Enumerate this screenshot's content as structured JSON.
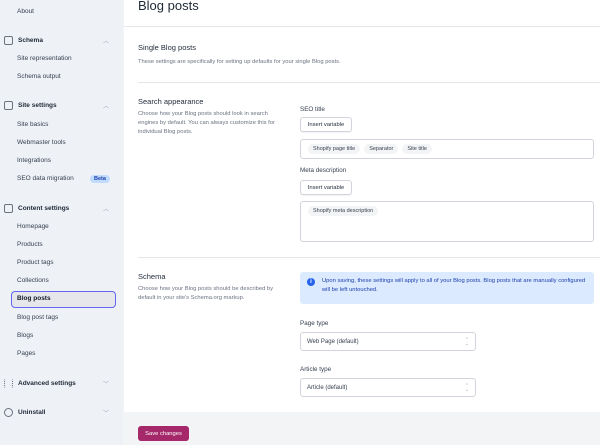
{
  "sidebar": {
    "about": "About",
    "schema": {
      "label": "Schema",
      "items": [
        "Site representation",
        "Schema output"
      ]
    },
    "site_settings": {
      "label": "Site settings",
      "items": [
        "Site basics",
        "Webmaster tools",
        "Integrations",
        "SEO data migration"
      ],
      "badge": "Beta"
    },
    "content_settings": {
      "label": "Content settings",
      "items": [
        "Homepage",
        "Products",
        "Product tags",
        "Collections",
        "Blog posts",
        "Blog post tags",
        "Blogs",
        "Pages"
      ]
    },
    "advanced": "Advanced settings",
    "uninstall": "Uninstall",
    "active_item": "Blog posts"
  },
  "page": {
    "title": "Blog posts",
    "single": {
      "heading": "Single Blog posts",
      "description": "These settings are specifically for setting up defaults for your single Blog posts."
    },
    "search": {
      "heading": "Search appearance",
      "description": "Choose how your Blog posts should look in search engines by default. You can always customize this for individual Blog posts.",
      "seo_title_label": "SEO title",
      "insert_variable": "Insert variable",
      "seo_title_chips": [
        "Shopify page title",
        "Separator",
        "Site title"
      ],
      "meta_label": "Meta description",
      "meta_chips": [
        "Shopify meta description"
      ]
    },
    "schema": {
      "heading": "Schema",
      "description": "Choose how your Blog posts should be described by default in your site's Schema.org markup.",
      "info": "Upon saving, these settings will apply to all of your Blog posts. Blog posts that are manually configured will be left untouched.",
      "page_type_label": "Page type",
      "page_type_value": "Web Page (default)",
      "article_type_label": "Article type",
      "article_type_value": "Article (default)"
    }
  },
  "footer": {
    "save": "Save changes"
  },
  "colors": {
    "accent": "#a4286a",
    "active_border": "#6366f1",
    "info_bg": "#dbeafe"
  }
}
